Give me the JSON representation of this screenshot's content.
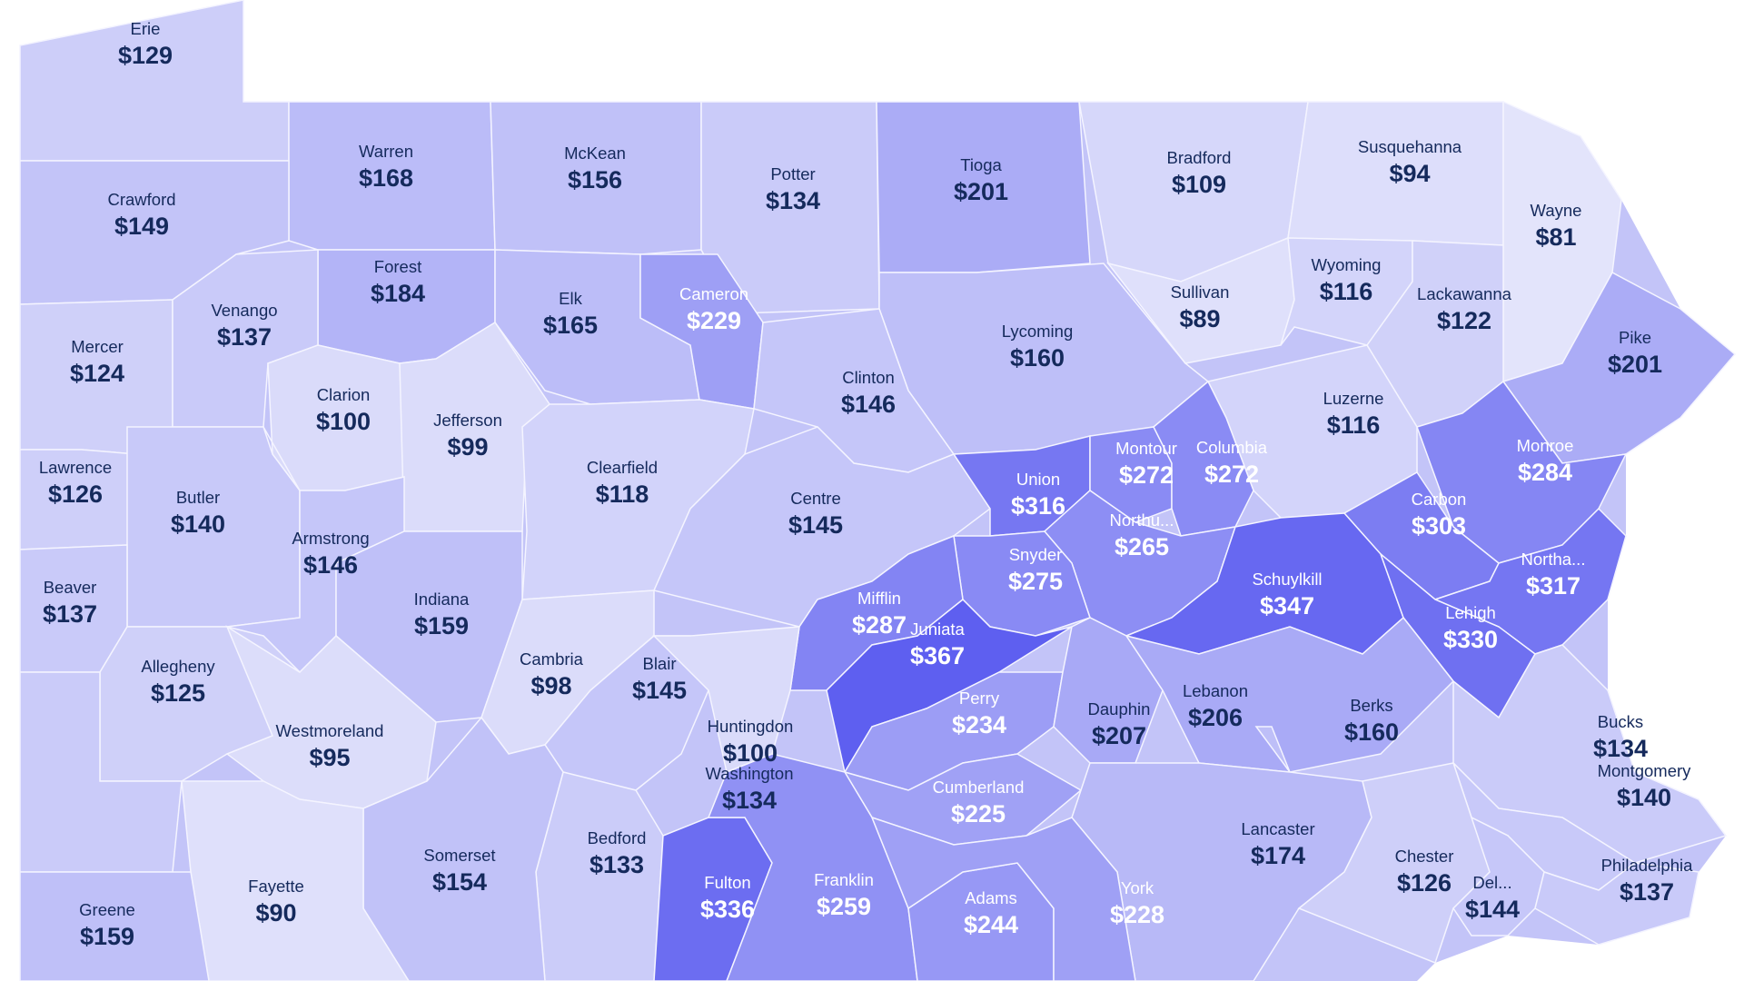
{
  "map": {
    "colors": {
      "scale_low": "#e3e4fb",
      "scale_high": "#5e5ff0",
      "dark_text": "#152a5c",
      "light_text": "#ffffff",
      "border": "#f4f4ff",
      "background": "#ffffff"
    },
    "value_range": [
      81,
      367
    ],
    "counties": [
      {
        "name": "Erie",
        "value_label": "$129",
        "value": 129
      },
      {
        "name": "Warren",
        "value_label": "$168",
        "value": 168
      },
      {
        "name": "McKean",
        "value_label": "$156",
        "value": 156
      },
      {
        "name": "Potter",
        "value_label": "$134",
        "value": 134
      },
      {
        "name": "Tioga",
        "value_label": "$201",
        "value": 201
      },
      {
        "name": "Bradford",
        "value_label": "$109",
        "value": 109
      },
      {
        "name": "Susquehanna",
        "value_label": "$94",
        "value": 94
      },
      {
        "name": "Wayne",
        "value_label": "$81",
        "value": 81
      },
      {
        "name": "Crawford",
        "value_label": "$149",
        "value": 149
      },
      {
        "name": "Forest",
        "value_label": "$184",
        "value": 184
      },
      {
        "name": "Elk",
        "value_label": "$165",
        "value": 165
      },
      {
        "name": "Cameron",
        "value_label": "$229",
        "value": 229
      },
      {
        "name": "Lycoming",
        "value_label": "$160",
        "value": 160
      },
      {
        "name": "Sullivan",
        "value_label": "$89",
        "value": 89
      },
      {
        "name": "Wyoming",
        "value_label": "$116",
        "value": 116
      },
      {
        "name": "Lackawanna",
        "value_label": "$122",
        "value": 122
      },
      {
        "name": "Pike",
        "value_label": "$201",
        "value": 201
      },
      {
        "name": "Mercer",
        "value_label": "$124",
        "value": 124
      },
      {
        "name": "Venango",
        "value_label": "$137",
        "value": 137
      },
      {
        "name": "Clarion",
        "value_label": "$100",
        "value": 100
      },
      {
        "name": "Jefferson",
        "value_label": "$99",
        "value": 99
      },
      {
        "name": "Clinton",
        "value_label": "$146",
        "value": 146
      },
      {
        "name": "Luzerne",
        "value_label": "$116",
        "value": 116
      },
      {
        "name": "Lawrence",
        "value_label": "$126",
        "value": 126
      },
      {
        "name": "Butler",
        "value_label": "$140",
        "value": 140
      },
      {
        "name": "Clearfield",
        "value_label": "$118",
        "value": 118
      },
      {
        "name": "Centre",
        "value_label": "$145",
        "value": 145
      },
      {
        "name": "Union",
        "value_label": "$316",
        "value": 316
      },
      {
        "name": "Montour",
        "value_label": "$272",
        "value": 272
      },
      {
        "name": "Columbia",
        "value_label": "$272",
        "value": 272
      },
      {
        "name": "Monroe",
        "value_label": "$284",
        "value": 284
      },
      {
        "name": "Carbon",
        "value_label": "$303",
        "value": 303
      },
      {
        "name": "Armstrong",
        "value_label": "$146",
        "value": 146
      },
      {
        "name": "Northu...",
        "value_label": "$265",
        "value": 265
      },
      {
        "name": "Beaver",
        "value_label": "$137",
        "value": 137
      },
      {
        "name": "Indiana",
        "value_label": "$159",
        "value": 159
      },
      {
        "name": "Snyder",
        "value_label": "$275",
        "value": 275
      },
      {
        "name": "Schuylkill",
        "value_label": "$347",
        "value": 347
      },
      {
        "name": "Northa...",
        "value_label": "$317",
        "value": 317
      },
      {
        "name": "Mifflin",
        "value_label": "$287",
        "value": 287
      },
      {
        "name": "Juniata",
        "value_label": "$367",
        "value": 367
      },
      {
        "name": "Lehigh",
        "value_label": "$330",
        "value": 330
      },
      {
        "name": "Allegheny",
        "value_label": "$125",
        "value": 125
      },
      {
        "name": "Cambria",
        "value_label": "$98",
        "value": 98
      },
      {
        "name": "Blair",
        "value_label": "$145",
        "value": 145
      },
      {
        "name": "Perry",
        "value_label": "$234",
        "value": 234
      },
      {
        "name": "Dauphin",
        "value_label": "$207",
        "value": 207
      },
      {
        "name": "Lebanon",
        "value_label": "$206",
        "value": 206
      },
      {
        "name": "Berks",
        "value_label": "$160",
        "value": 160
      },
      {
        "name": "Bucks",
        "value_label": "$134",
        "value": 134
      },
      {
        "name": "Westmoreland",
        "value_label": "$95",
        "value": 95
      },
      {
        "name": "Huntingdon",
        "value_label": "$100",
        "value": 100
      },
      {
        "name": "Washington",
        "value_label": "$134",
        "value": 134
      },
      {
        "name": "Montgomery",
        "value_label": "$140",
        "value": 140
      },
      {
        "name": "Cumberland",
        "value_label": "$225",
        "value": 225
      },
      {
        "name": "Lancaster",
        "value_label": "$174",
        "value": 174
      },
      {
        "name": "Bedford",
        "value_label": "$133",
        "value": 133
      },
      {
        "name": "Somerset",
        "value_label": "$154",
        "value": 154
      },
      {
        "name": "Fayette",
        "value_label": "$90",
        "value": 90
      },
      {
        "name": "Fulton",
        "value_label": "$336",
        "value": 336
      },
      {
        "name": "Franklin",
        "value_label": "$259",
        "value": 259
      },
      {
        "name": "Adams",
        "value_label": "$244",
        "value": 244
      },
      {
        "name": "York",
        "value_label": "$228",
        "value": 228
      },
      {
        "name": "Chester",
        "value_label": "$126",
        "value": 126
      },
      {
        "name": "Del...",
        "value_label": "$144",
        "value": 144
      },
      {
        "name": "Philadelphia",
        "value_label": "$137",
        "value": 137
      },
      {
        "name": "Greene",
        "value_label": "$159",
        "value": 159
      }
    ]
  }
}
